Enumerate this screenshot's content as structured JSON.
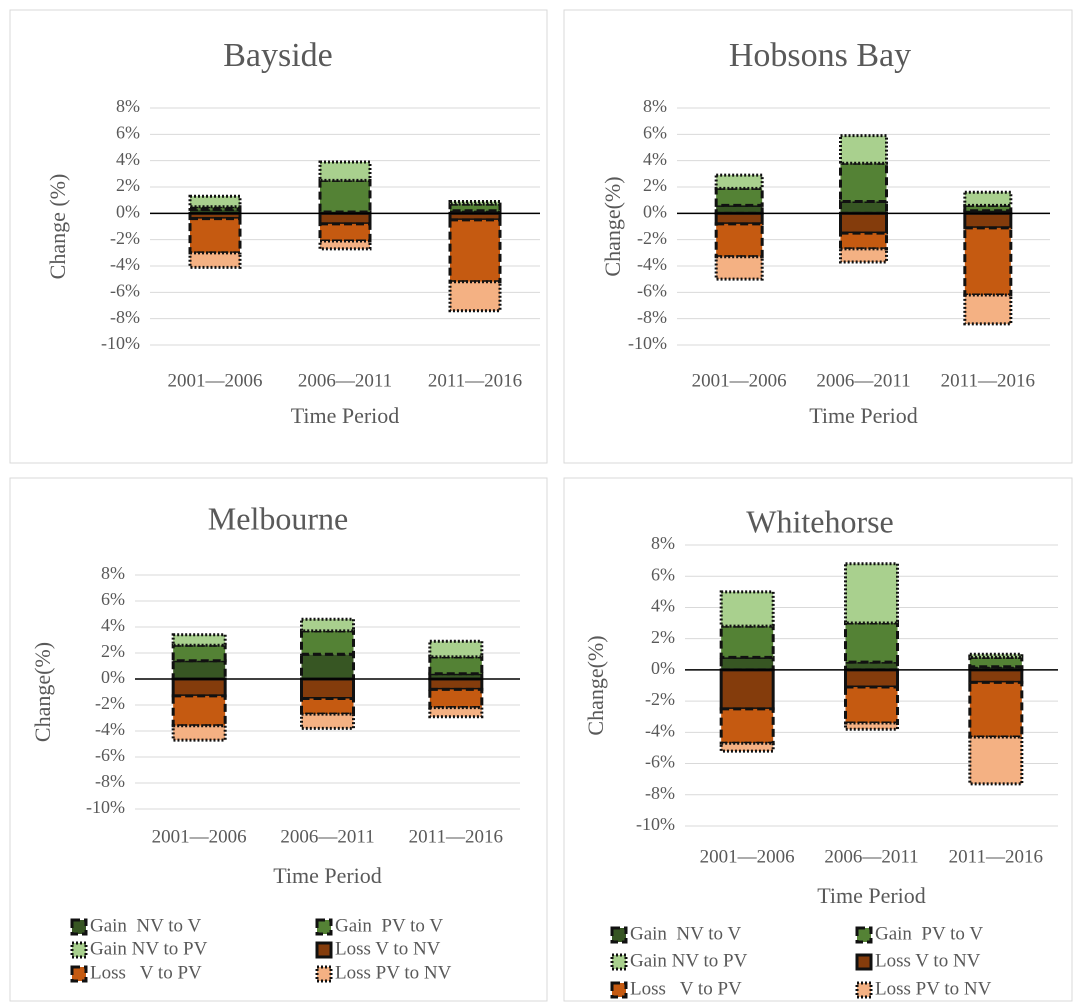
{
  "chart_data": [
    {
      "type": "stacked-bar",
      "title": "Bayside",
      "y_label": "Change (%)",
      "x_label": "Time Period",
      "categories": [
        "2001—2006",
        "2006—2011",
        "2011—2016"
      ],
      "ylim": [
        -10,
        8
      ],
      "yticks": [
        {
          "value": -10,
          "label": "-10%"
        },
        {
          "value": -8,
          "label": "-8%"
        },
        {
          "value": -6,
          "label": "-6%"
        },
        {
          "value": -4,
          "label": "-4%"
        },
        {
          "value": -2,
          "label": "-2%"
        },
        {
          "value": 0,
          "label": "0%"
        },
        {
          "value": 2,
          "label": "2%"
        },
        {
          "value": 4,
          "label": "4%"
        },
        {
          "value": 6,
          "label": "6%"
        },
        {
          "value": 8,
          "label": "8%"
        }
      ],
      "grid": true,
      "series": [
        {
          "color": "#375623",
          "values": [
            0.3,
            0.1,
            0.2
          ]
        },
        {
          "color": "#548235",
          "values": [
            0.2,
            2.4,
            0.5
          ]
        },
        {
          "color": "#a9d08e",
          "values": [
            0.8,
            1.4,
            0.2
          ]
        },
        {
          "color": "#843c0c",
          "values": [
            -0.4,
            -0.8,
            -0.5
          ]
        },
        {
          "color": "#c55a11",
          "values": [
            -2.6,
            -1.3,
            -4.7
          ]
        },
        {
          "color": "#f4b183",
          "values": [
            -1.1,
            -0.6,
            -2.2
          ]
        }
      ]
    },
    {
      "type": "stacked-bar",
      "title": "Hobsons  Bay",
      "y_label": "Change(%)",
      "x_label": "Time Period",
      "categories": [
        "2001—2006",
        "2006—2011",
        "2011—2016"
      ],
      "ylim": [
        -10,
        8
      ],
      "yticks": [
        {
          "value": -10,
          "label": "-10%"
        },
        {
          "value": -8,
          "label": "-8%"
        },
        {
          "value": -6,
          "label": "-6%"
        },
        {
          "value": -4,
          "label": "-4%"
        },
        {
          "value": -2,
          "label": "-2%"
        },
        {
          "value": 0,
          "label": "0%"
        },
        {
          "value": 2,
          "label": "2%"
        },
        {
          "value": 4,
          "label": "4%"
        },
        {
          "value": 6,
          "label": "6%"
        },
        {
          "value": 8,
          "label": "8%"
        }
      ],
      "grid": true,
      "series": [
        {
          "color": "#375623",
          "values": [
            0.6,
            0.9,
            0.2
          ]
        },
        {
          "color": "#548235",
          "values": [
            1.3,
            2.9,
            0.4
          ]
        },
        {
          "color": "#a9d08e",
          "values": [
            1.0,
            2.1,
            1.0
          ]
        },
        {
          "color": "#843c0c",
          "values": [
            -0.8,
            -1.5,
            -1.1
          ]
        },
        {
          "color": "#c55a11",
          "values": [
            -2.5,
            -1.2,
            -5.1
          ]
        },
        {
          "color": "#f4b183",
          "values": [
            -1.7,
            -1.0,
            -2.2
          ]
        }
      ]
    },
    {
      "type": "stacked-bar",
      "title": "Melbourne",
      "y_label": "Change(%)",
      "x_label": "Time Period",
      "categories": [
        "2001—2006",
        "2006—2011",
        "2011—2016"
      ],
      "ylim": [
        -10,
        8
      ],
      "yticks": [
        {
          "value": -10,
          "label": "-10%"
        },
        {
          "value": -8,
          "label": "-8%"
        },
        {
          "value": -6,
          "label": "-6%"
        },
        {
          "value": -4,
          "label": "-4%"
        },
        {
          "value": -2,
          "label": "-2%"
        },
        {
          "value": 0,
          "label": "0%"
        },
        {
          "value": 2,
          "label": "2%"
        },
        {
          "value": 4,
          "label": "4%"
        },
        {
          "value": 6,
          "label": "6%"
        },
        {
          "value": 8,
          "label": "8%"
        }
      ],
      "grid": true,
      "legend": "bottom",
      "series": [
        {
          "name": "Gain  NV to V",
          "color": "#375623",
          "values": [
            1.4,
            1.9,
            0.4
          ]
        },
        {
          "name": "Gain  PV to V",
          "color": "#548235",
          "values": [
            1.2,
            1.8,
            1.3
          ]
        },
        {
          "name": "Gain NV to PV",
          "color": "#a9d08e",
          "values": [
            0.8,
            0.9,
            1.2
          ]
        },
        {
          "name": "Loss V to NV",
          "color": "#843c0c",
          "values": [
            -1.3,
            -1.5,
            -0.8
          ]
        },
        {
          "name": "Loss   V to PV",
          "color": "#c55a11",
          "values": [
            -2.3,
            -1.2,
            -1.4
          ]
        },
        {
          "name": "Loss PV to NV",
          "color": "#f4b183",
          "values": [
            -1.1,
            -1.1,
            -0.7
          ]
        }
      ]
    },
    {
      "type": "stacked-bar",
      "title": "Whitehorse",
      "y_label": "Change(%)",
      "x_label": "Time Period",
      "categories": [
        "2001—2006",
        "2006—2011",
        "2011—2016"
      ],
      "ylim": [
        -10,
        8
      ],
      "yticks": [
        {
          "value": -10,
          "label": "-10%"
        },
        {
          "value": -8,
          "label": "-8%"
        },
        {
          "value": -6,
          "label": "-6%"
        },
        {
          "value": -4,
          "label": "-4%"
        },
        {
          "value": -2,
          "label": "-2%"
        },
        {
          "value": 0,
          "label": "0%"
        },
        {
          "value": 2,
          "label": "2%"
        },
        {
          "value": 4,
          "label": "4%"
        },
        {
          "value": 6,
          "label": "6%"
        },
        {
          "value": 8,
          "label": "8%"
        }
      ],
      "grid": true,
      "legend": "bottom",
      "series": [
        {
          "name": "Gain  NV to V",
          "color": "#375623",
          "values": [
            0.8,
            0.5,
            0.2
          ]
        },
        {
          "name": "Gain  PV to V",
          "color": "#548235",
          "values": [
            2.0,
            2.5,
            0.6
          ]
        },
        {
          "name": "Gain NV to PV",
          "color": "#a9d08e",
          "values": [
            2.2,
            3.8,
            0.2
          ]
        },
        {
          "name": "Loss V to NV",
          "color": "#843c0c",
          "values": [
            -2.5,
            -1.1,
            -0.8
          ]
        },
        {
          "name": "Loss   V to PV",
          "color": "#c55a11",
          "values": [
            -2.2,
            -2.3,
            -3.5
          ]
        },
        {
          "name": "Loss PV to NV",
          "color": "#f4b183",
          "values": [
            -0.5,
            -0.4,
            -3.0
          ]
        }
      ]
    }
  ]
}
